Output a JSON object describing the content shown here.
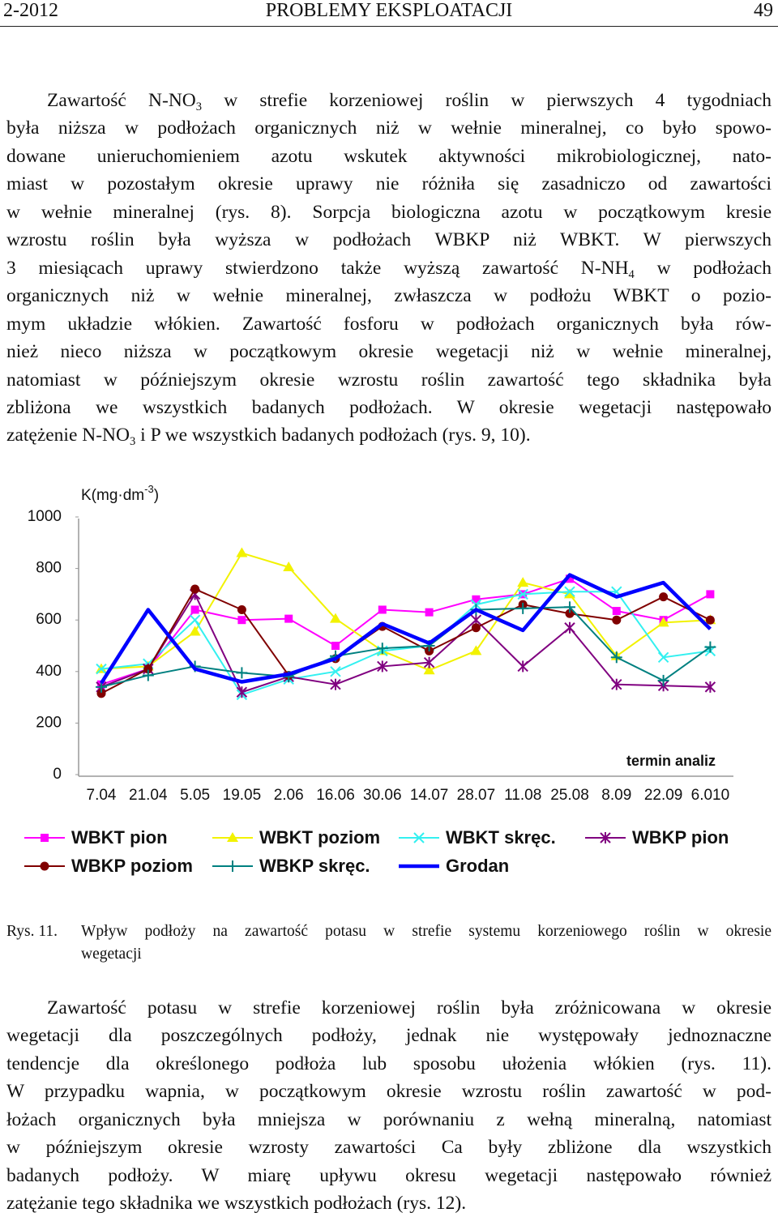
{
  "header": {
    "left": "2-2012",
    "center": "PROBLEMY EKSPLOATACJI",
    "right": "49"
  },
  "paragraphs": [
    {
      "lines": [
        [
          "Zawartość N-NO",
          {
            "sub": "3"
          },
          " w strefie korzeniowej roślin w pierwszych 4 tygodniach"
        ],
        [
          "była niższa w podłożach organicznych niż w wełnie mineralnej, co było spowo-"
        ],
        [
          "dowane unieruchomieniem azotu wskutek aktywności mikrobiologicznej, nato-"
        ],
        [
          "miast w pozostałym okresie uprawy nie różniła się zasadniczo od zawartości"
        ],
        [
          "w wełnie mineralnej (rys. 8). Sorpcja biologiczna azotu w początkowym kresie"
        ],
        [
          "wzrostu roślin była wyższa w podłożach WBKP niż WBKT. W pierwszych"
        ],
        [
          "3 miesiącach uprawy stwierdzono także wyższą zawartość N-NH",
          {
            "sub": "4"
          },
          " w podłożach"
        ],
        [
          "organicznych niż w wełnie mineralnej, zwłaszcza w podłożu WBKT o pozio-"
        ],
        [
          "mym układzie włókien. Zawartość fosforu w podłożach organicznych była rów-"
        ],
        [
          "nież nieco niższa w początkowym okresie wegetacji niż w wełnie mineralnej,"
        ],
        [
          "natomiast w późniejszym okresie wzrostu roślin zawartość tego składnika była"
        ],
        [
          "zbliżona we wszystkich badanych podłożach. W okresie wegetacji następowało"
        ],
        [
          "zatężenie N-NO",
          {
            "sub": "3"
          },
          " i P we wszystkich badanych podłożach (rys. 9, 10)."
        ]
      ]
    },
    {
      "lines": [
        [
          "Zawartość potasu w strefie korzeniowej roślin była zróżnicowana w okresie"
        ],
        [
          "wegetacji dla poszczególnych podłoży, jednak nie występowały jednoznaczne"
        ],
        [
          "tendencje dla określonego podłoża lub sposobu ułożenia włókien (rys. 11)."
        ],
        [
          "W przypadku wapnia, w początkowym okresie wzrostu roślin zawartość w pod-"
        ],
        [
          "łożach organicznych była mniejsza w porównaniu z wełną mineralną, natomiast"
        ],
        [
          "w późniejszym okresie wzrosty zawartości Ca były zbliżone dla wszystkich"
        ],
        [
          "badanych podłoży. W miarę upływu okresu wegetacji następowało również"
        ],
        [
          "zatężanie tego składnika we wszystkich podłożach (rys. 12)."
        ]
      ]
    }
  ],
  "caption": {
    "label": "Rys. 11.",
    "lines": [
      "Wpływ podłoży na zawartość potasu w strefie systemu korzeniowego roślin w okresie",
      "wegetacji"
    ]
  },
  "chart_data": {
    "type": "line",
    "y_label": [
      "K(mg·dm",
      {
        "sup": "-3"
      },
      ")"
    ],
    "x_label": "termin analiz",
    "categories": [
      "7.04",
      "21.04",
      "5.05",
      "19.05",
      "2.06",
      "16.06",
      "30.06",
      "14.07",
      "28.07",
      "11.08",
      "25.08",
      "8.09",
      "22.09",
      "6.010"
    ],
    "ylim": [
      0,
      1000
    ],
    "yticks": [
      0,
      200,
      400,
      600,
      800,
      1000
    ],
    "grid": false,
    "series": [
      {
        "name": "WBKT pion",
        "color": "#ff00ff",
        "marker": "square",
        "line_width": 2,
        "values": [
          350,
          410,
          640,
          600,
          605,
          500,
          640,
          630,
          680,
          700,
          760,
          635,
          600,
          700
        ]
      },
      {
        "name": "WBKT poziom",
        "color": "#f2f200",
        "marker": "triangle",
        "line_width": 2,
        "values": [
          410,
          420,
          555,
          860,
          805,
          605,
          480,
          405,
          480,
          745,
          700,
          460,
          590,
          600
        ]
      },
      {
        "name": "WBKT skręc.",
        "color": "#33f0f0",
        "marker": "x",
        "line_width": 2,
        "values": [
          410,
          430,
          600,
          310,
          370,
          400,
          480,
          500,
          660,
          700,
          710,
          710,
          455,
          480
        ]
      },
      {
        "name": "WBKP pion",
        "color": "#800080",
        "marker": "star",
        "line_width": 2,
        "values": [
          340,
          410,
          700,
          320,
          380,
          350,
          420,
          435,
          600,
          420,
          570,
          350,
          345,
          340
        ]
      },
      {
        "name": "WBKP poziom",
        "color": "#800000",
        "marker": "circle",
        "line_width": 2,
        "values": [
          315,
          410,
          720,
          640,
          385,
          450,
          575,
          480,
          570,
          660,
          625,
          600,
          690,
          600
        ]
      },
      {
        "name": "WBKP skręc.",
        "color": "#008080",
        "marker": "plus",
        "line_width": 2,
        "values": [
          340,
          385,
          420,
          395,
          380,
          460,
          490,
          500,
          640,
          645,
          650,
          455,
          365,
          495
        ]
      },
      {
        "name": "Grodan",
        "color": "#0000ff",
        "marker": "none",
        "line_width": 4.5,
        "values": [
          355,
          640,
          410,
          360,
          390,
          450,
          585,
          510,
          640,
          560,
          775,
          690,
          745,
          565
        ]
      }
    ]
  }
}
